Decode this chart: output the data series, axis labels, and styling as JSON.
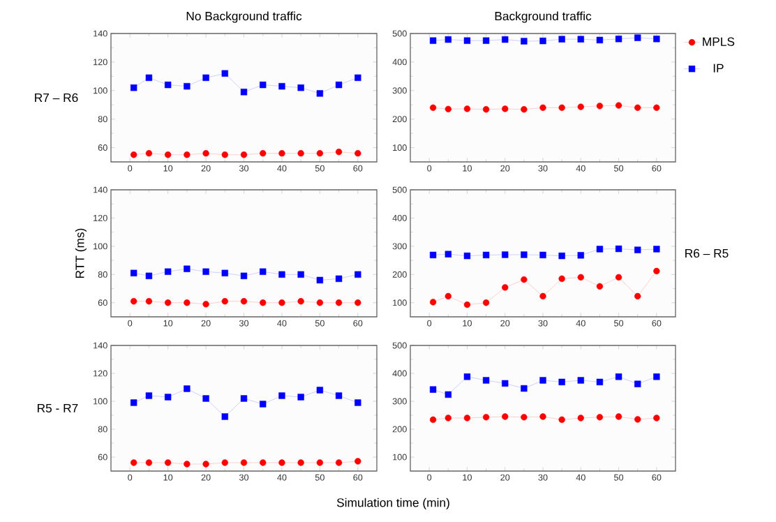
{
  "chart_data": [
    {
      "type": "line",
      "title": "No Background traffic",
      "annotations": [
        "R7 – R6"
      ],
      "x": [
        1,
        5,
        10,
        15,
        20,
        25,
        30,
        35,
        40,
        45,
        50,
        55,
        60
      ],
      "xlim": [
        -5,
        65
      ],
      "xticks": [
        0,
        10,
        20,
        30,
        40,
        50,
        60
      ],
      "ylim": [
        50,
        140
      ],
      "yticks": [
        60,
        80,
        100,
        120,
        140
      ],
      "series": [
        {
          "color": "#ff0000",
          "marker": "circle",
          "values": [
            55,
            56,
            55,
            55,
            56,
            55,
            55,
            56,
            56,
            56,
            56,
            57,
            56
          ]
        },
        {
          "color": "#0000ff",
          "marker": "square",
          "values": [
            102,
            109,
            104,
            103,
            109,
            112,
            99,
            104,
            103,
            102,
            98,
            104,
            109
          ]
        }
      ]
    },
    {
      "type": "line",
      "title": "Background traffic",
      "legend": "right",
      "x": [
        1,
        5,
        10,
        15,
        20,
        25,
        30,
        35,
        40,
        45,
        50,
        55,
        60
      ],
      "xlim": [
        -5,
        65
      ],
      "xticks": [
        0,
        10,
        20,
        30,
        40,
        50,
        60
      ],
      "ylim": [
        50,
        500
      ],
      "yticks": [
        100,
        200,
        300,
        400,
        500
      ],
      "series": [
        {
          "name": "MPLS",
          "color": "#ff0000",
          "marker": "circle",
          "values": [
            240,
            235,
            236,
            234,
            236,
            234,
            240,
            240,
            243,
            246,
            248,
            240,
            240
          ]
        },
        {
          "name": "IP",
          "color": "#0000ff",
          "marker": "square",
          "values": [
            475,
            479,
            475,
            475,
            479,
            473,
            474,
            480,
            480,
            477,
            481,
            485,
            481
          ]
        }
      ]
    },
    {
      "type": "line",
      "ylabel": "RTT (ms)",
      "x": [
        1,
        5,
        10,
        15,
        20,
        25,
        30,
        35,
        40,
        45,
        50,
        55,
        60
      ],
      "xlim": [
        -5,
        65
      ],
      "xticks": [
        0,
        10,
        20,
        30,
        40,
        50,
        60
      ],
      "ylim": [
        50,
        140
      ],
      "yticks": [
        60,
        80,
        100,
        120,
        140
      ],
      "series": [
        {
          "color": "#ff0000",
          "marker": "circle",
          "values": [
            61,
            61,
            60,
            60,
            59,
            61,
            61,
            60,
            60,
            61,
            60,
            60,
            60
          ]
        },
        {
          "color": "#0000ff",
          "marker": "square",
          "values": [
            81,
            79,
            82,
            84,
            82,
            81,
            79,
            82,
            80,
            80,
            76,
            77,
            80
          ]
        }
      ]
    },
    {
      "type": "line",
      "annotations": [
        "R6 – R5"
      ],
      "x": [
        1,
        5,
        10,
        15,
        20,
        25,
        30,
        35,
        40,
        45,
        50,
        55,
        60
      ],
      "xlim": [
        -5,
        65
      ],
      "xticks": [
        0,
        10,
        20,
        30,
        40,
        50,
        60
      ],
      "ylim": [
        50,
        500
      ],
      "yticks": [
        100,
        200,
        300,
        400,
        500
      ],
      "series": [
        {
          "color": "#ff0000",
          "marker": "circle",
          "values": [
            102,
            123,
            93,
            100,
            154,
            182,
            123,
            185,
            190,
            158,
            190,
            123,
            212
          ]
        },
        {
          "color": "#0000ff",
          "marker": "square",
          "values": [
            269,
            272,
            266,
            269,
            270,
            270,
            269,
            266,
            268,
            290,
            291,
            287,
            290
          ]
        }
      ]
    },
    {
      "type": "line",
      "annotations": [
        "R5 - R7"
      ],
      "xlabel": "Simulation time (min)",
      "x": [
        1,
        5,
        10,
        15,
        20,
        25,
        30,
        35,
        40,
        45,
        50,
        55,
        60
      ],
      "xlim": [
        -5,
        65
      ],
      "xticks": [
        0,
        10,
        20,
        30,
        40,
        50,
        60
      ],
      "ylim": [
        50,
        140
      ],
      "yticks": [
        60,
        80,
        100,
        120,
        140
      ],
      "series": [
        {
          "color": "#ff0000",
          "marker": "circle",
          "values": [
            56,
            56,
            56,
            55,
            55,
            56,
            56,
            56,
            56,
            56,
            56,
            56,
            57
          ]
        },
        {
          "color": "#0000ff",
          "marker": "square",
          "values": [
            99,
            104,
            103,
            109,
            102,
            89,
            102,
            98,
            104,
            103,
            108,
            104,
            99
          ]
        }
      ]
    },
    {
      "type": "line",
      "x": [
        1,
        5,
        10,
        15,
        20,
        25,
        30,
        35,
        40,
        45,
        50,
        55,
        60
      ],
      "xlim": [
        -5,
        65
      ],
      "xticks": [
        0,
        10,
        20,
        30,
        40,
        50,
        60
      ],
      "ylim": [
        50,
        500
      ],
      "yticks": [
        100,
        200,
        300,
        400,
        500
      ],
      "series": [
        {
          "color": "#ff0000",
          "marker": "circle",
          "values": [
            234,
            240,
            240,
            243,
            245,
            243,
            245,
            234,
            240,
            243,
            245,
            235,
            240
          ]
        },
        {
          "color": "#0000ff",
          "marker": "square",
          "values": [
            342,
            324,
            388,
            375,
            364,
            346,
            375,
            369,
            375,
            369,
            388,
            362,
            388
          ]
        }
      ]
    }
  ]
}
